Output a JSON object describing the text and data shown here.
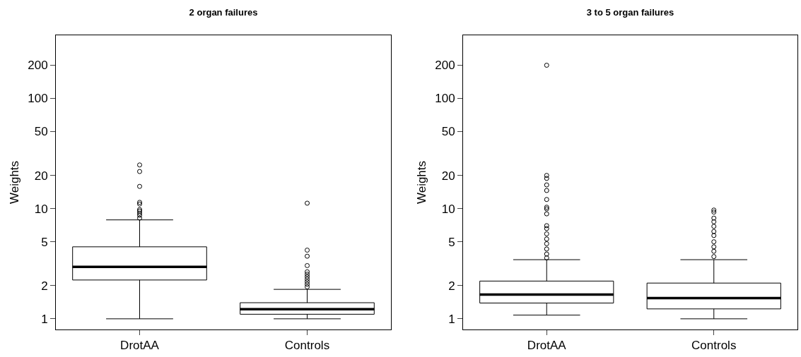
{
  "chart_data": [
    {
      "type": "box",
      "title": "2 organ failures",
      "ylabel": "Weights",
      "categories": [
        "DrotAA",
        "Controls"
      ],
      "log": true,
      "grid": false,
      "ylim": [
        0.8,
        374
      ],
      "yticks": [
        1,
        2,
        5,
        10,
        20,
        50,
        100,
        200
      ],
      "boxes": [
        {
          "low": 1.0,
          "q1": 2.25,
          "median": 2.96,
          "q3": 4.5,
          "high": 7.9,
          "outliers": [
            24.9,
            21.7,
            15.9,
            11.4,
            11.0,
            9.8,
            9.5,
            9.1,
            8.7,
            8.2
          ]
        },
        {
          "low": 1.0,
          "q1": 1.1,
          "median": 1.22,
          "q3": 1.4,
          "high": 1.85,
          "outliers": [
            11.2,
            4.2,
            3.7,
            3.04,
            2.67,
            2.54,
            2.41,
            2.29,
            2.17,
            2.06,
            1.95
          ]
        }
      ]
    },
    {
      "type": "box",
      "title": "3 to 5 organ failures",
      "ylabel": "Weights",
      "categories": [
        "DrotAA",
        "Controls"
      ],
      "log": true,
      "grid": false,
      "ylim": [
        0.8,
        374
      ],
      "yticks": [
        1,
        2,
        5,
        10,
        20,
        50,
        100,
        200
      ],
      "boxes": [
        {
          "low": 1.08,
          "q1": 1.39,
          "median": 1.66,
          "q3": 2.2,
          "high": 3.44,
          "outliers": [
            200,
            20,
            18.8,
            16.4,
            14.6,
            12.1,
            10.3,
            9.95,
            8.96,
            7.0,
            6.6,
            5.9,
            5.3,
            4.8,
            4.3,
            3.87,
            3.57
          ]
        },
        {
          "low": 1.0,
          "q1": 1.23,
          "median": 1.54,
          "q3": 2.11,
          "high": 3.44,
          "outliers": [
            9.7,
            9.3,
            8.2,
            7.6,
            6.9,
            6.2,
            5.7,
            5.0,
            4.5,
            4.1,
            3.67
          ]
        }
      ]
    }
  ]
}
